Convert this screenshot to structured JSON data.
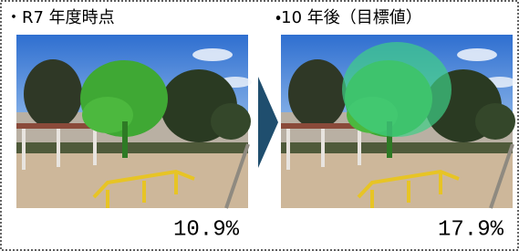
{
  "panels": [
    {
      "title": "・R7 年度時点",
      "value": "10.9%"
    },
    {
      "title": "・10 年後（目標値）",
      "value": "17.9%"
    }
  ]
}
